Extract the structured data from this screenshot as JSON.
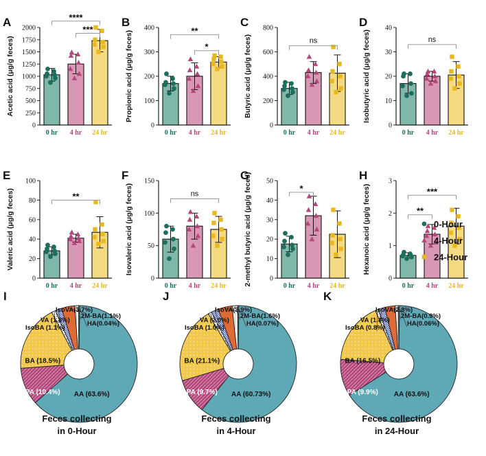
{
  "colors": {
    "g0": "#1e6e5e",
    "g4": "#b5467c",
    "g24": "#e8b820",
    "bar0": "#7fb8ab",
    "bar4": "#d997b6",
    "bar24": "#f6da82",
    "axis": "#222222",
    "sig": "#999999"
  },
  "legend": {
    "entries": [
      {
        "label": "0-Hour",
        "color": "#1e6e5e",
        "marker": "circle"
      },
      {
        "label": "4-Hour",
        "color": "#b5467c",
        "marker": "triangle"
      },
      {
        "label": "24-Hour",
        "color": "#e8b820",
        "marker": "square"
      }
    ]
  },
  "chart_data": [
    {
      "panel": "A",
      "type": "bar",
      "ylabel": "Acetic acid (μg/g feces)",
      "ylim": [
        0,
        2000
      ],
      "yticks": [
        "0",
        "250",
        "500",
        "750",
        "1000",
        "1250",
        "1500",
        "1750",
        "2000"
      ],
      "categories": [
        "0 hr",
        "4 hr",
        "24 hr"
      ],
      "means": [
        1030,
        1250,
        1730
      ],
      "sd": [
        130,
        200,
        230
      ],
      "points": [
        [
          870,
          960,
          1000,
          1030,
          1050,
          1100,
          1150
        ],
        [
          960,
          1050,
          1150,
          1280,
          1420,
          1450,
          1490
        ],
        [
          1500,
          1600,
          1650,
          1700,
          1750,
          1930,
          2000
        ]
      ],
      "sig": [
        {
          "from": 0,
          "to": 2,
          "label": "****",
          "y": 2130
        },
        {
          "from": 1,
          "to": 2,
          "label": "***",
          "y": 1880
        }
      ]
    },
    {
      "panel": "B",
      "type": "bar",
      "ylabel": "Propionic acid (μg/g feces)",
      "ylim": [
        0,
        400
      ],
      "yticks": [
        "0",
        "100",
        "200",
        "300",
        "400"
      ],
      "categories": [
        "0 hr",
        "4 hr",
        "24 hr"
      ],
      "means": [
        170,
        200,
        258
      ],
      "sd": [
        30,
        55,
        22
      ],
      "points": [
        [
          130,
          150,
          165,
          170,
          175,
          190,
          210
        ],
        [
          140,
          160,
          190,
          210,
          225,
          240,
          270
        ],
        [
          230,
          240,
          250,
          260,
          270,
          280,
          285
        ]
      ],
      "sig": [
        {
          "from": 0,
          "to": 2,
          "label": "**",
          "y": 370
        },
        {
          "from": 1,
          "to": 2,
          "label": "*",
          "y": 305
        }
      ]
    },
    {
      "panel": "C",
      "type": "bar",
      "ylabel": "Butyric acid (μg/g feces)",
      "ylim": [
        0,
        800
      ],
      "yticks": [
        "0",
        "200",
        "400",
        "600",
        "800"
      ],
      "categories": [
        "0 hr",
        "4 hr",
        "24 hr"
      ],
      "means": [
        300,
        430,
        425
      ],
      "sd": [
        50,
        90,
        150
      ],
      "points": [
        [
          240,
          270,
          290,
          300,
          320,
          340,
          350
        ],
        [
          330,
          360,
          400,
          430,
          450,
          500,
          560
        ],
        [
          270,
          300,
          360,
          400,
          440,
          500,
          640
        ]
      ],
      "sig": [
        {
          "from": 0,
          "to": 2,
          "label": "ns",
          "y": 650
        }
      ]
    },
    {
      "panel": "D",
      "type": "bar",
      "ylabel": "Isobutyric acid (μg/g feces)",
      "ylim": [
        0,
        40
      ],
      "yticks": [
        "0",
        "10",
        "20",
        "30",
        "40"
      ],
      "categories": [
        "0 hr",
        "4 hr",
        "24 hr"
      ],
      "means": [
        17,
        20,
        20.5
      ],
      "sd": [
        4,
        2,
        5.5
      ],
      "points": [
        [
          12,
          13,
          16,
          17,
          20,
          21,
          21
        ],
        [
          17,
          18,
          19,
          20,
          21,
          22,
          22
        ],
        [
          15,
          17,
          19,
          20,
          22,
          24,
          28
        ]
      ],
      "sig": [
        {
          "from": 0,
          "to": 2,
          "label": "ns",
          "y": 33
        }
      ]
    },
    {
      "panel": "E",
      "type": "bar",
      "ylabel": "Valeric acid (μg/g feces)",
      "ylim": [
        0,
        100
      ],
      "yticks": [
        "0",
        "20",
        "40",
        "60",
        "80",
        "100"
      ],
      "categories": [
        "0 hr",
        "4 hr",
        "24 hr"
      ],
      "means": [
        28,
        41,
        47
      ],
      "sd": [
        4,
        4,
        16
      ],
      "points": [
        [
          22,
          25,
          27,
          28,
          30,
          32,
          34
        ],
        [
          36,
          38,
          40,
          41,
          43,
          45,
          47
        ],
        [
          35,
          38,
          42,
          45,
          50,
          55,
          78
        ]
      ],
      "sig": [
        {
          "from": 0,
          "to": 2,
          "label": "**",
          "y": 80
        }
      ]
    },
    {
      "panel": "F",
      "type": "bar",
      "ylabel": "Isovaleric acid (μg/g feces)",
      "ylim": [
        0,
        150
      ],
      "yticks": [
        "0",
        "50",
        "100",
        "150"
      ],
      "categories": [
        "0 hr",
        "4 hr",
        "24 hr"
      ],
      "means": [
        60,
        80,
        75
      ],
      "sd": [
        20,
        20,
        20
      ],
      "points": [
        [
          30,
          45,
          55,
          60,
          70,
          75,
          80
        ],
        [
          50,
          65,
          75,
          80,
          90,
          95,
          102
        ],
        [
          50,
          60,
          65,
          75,
          85,
          90,
          100
        ]
      ],
      "sig": [
        {
          "from": 0,
          "to": 2,
          "label": "ns",
          "y": 122
        }
      ]
    },
    {
      "panel": "G",
      "type": "bar",
      "ylabel": "2-methyl butyric acid (μg/g feces)",
      "ylim": [
        0,
        50
      ],
      "yticks": [
        "0",
        "10",
        "20",
        "30",
        "40",
        "50"
      ],
      "categories": [
        "0 hr",
        "4 hr",
        "24 hr"
      ],
      "means": [
        17.5,
        32,
        22.5
      ],
      "sd": [
        4,
        10,
        12
      ],
      "points": [
        [
          12,
          15,
          16,
          17,
          19,
          21,
          23
        ],
        [
          20,
          25,
          28,
          32,
          35,
          38,
          42
        ],
        [
          12,
          15,
          18,
          20,
          22,
          28,
          35
        ]
      ],
      "sig": [
        {
          "from": 0,
          "to": 1,
          "label": "*",
          "y": 44
        }
      ]
    },
    {
      "panel": "H",
      "type": "bar",
      "ylabel": "Hexanoic acid (μg/g feces)",
      "ylim": [
        0,
        3
      ],
      "yticks": [
        "0",
        "1",
        "2",
        "3"
      ],
      "categories": [
        "0 hr",
        "4 hr",
        "24 hr"
      ],
      "means": [
        0.7,
        1.35,
        1.6
      ],
      "sd": [
        0.08,
        0.3,
        0.55
      ],
      "points": [
        [
          0.6,
          0.65,
          0.68,
          0.7,
          0.72,
          0.75,
          0.8
        ],
        [
          1.0,
          1.1,
          1.3,
          1.35,
          1.45,
          1.55,
          1.6
        ],
        [
          1.0,
          1.2,
          1.4,
          1.55,
          1.7,
          1.9,
          2.1
        ]
      ],
      "sig": [
        {
          "from": 0,
          "to": 1,
          "label": "**",
          "y": 1.95
        },
        {
          "from": 0,
          "to": 2,
          "label": "***",
          "y": 2.55
        }
      ]
    },
    {
      "panel": "I",
      "type": "pie",
      "caption": [
        "Feces collecting",
        "in 0-Hour"
      ],
      "slices": [
        {
          "key": "AA",
          "value": 63.6,
          "inside": "AA (63.6%)"
        },
        {
          "key": "PA",
          "value": 10.4,
          "inside": "PA (10.4%)"
        },
        {
          "key": "BA",
          "value": 18.5,
          "inside": "BA (18.5%)"
        },
        {
          "key": "IsoBA",
          "value": 1.1,
          "outside": "IsoBA (1.1%)"
        },
        {
          "key": "VA",
          "value": 1.8,
          "outside": "VA (1.8%)"
        },
        {
          "key": "IsoVA",
          "value": 3.7,
          "outside": "IsoVA(3.7%)"
        },
        {
          "key": "2M-BA",
          "value": 1.1,
          "outside": "2M-BA(1.1%)"
        },
        {
          "key": "HA",
          "value": 0.04,
          "outside": "HA(0.04%)"
        }
      ]
    },
    {
      "panel": "J",
      "type": "pie",
      "caption": [
        "Feces collecting",
        "in 4-Hour"
      ],
      "slices": [
        {
          "key": "AA",
          "value": 60.73,
          "inside": "AA (60.73%)"
        },
        {
          "key": "PA",
          "value": 9.7,
          "inside": "PA (9.7%)"
        },
        {
          "key": "BA",
          "value": 21.1,
          "inside": "BA (21.1%)"
        },
        {
          "key": "IsoBA",
          "value": 1.0,
          "outside": "IsoBA (1.0%)"
        },
        {
          "key": "VA",
          "value": 2.0,
          "outside": "VA (2.0%)"
        },
        {
          "key": "IsoVA",
          "value": 3.9,
          "outside": "IsoVA(3.9%)"
        },
        {
          "key": "2M-BA",
          "value": 1.6,
          "outside": "2M-BA(1.6%)"
        },
        {
          "key": "HA",
          "value": 0.07,
          "outside": "HA(0.07%)"
        }
      ]
    },
    {
      "panel": "K",
      "type": "pie",
      "caption": [
        "Feces collecting",
        "in 24-Hour"
      ],
      "slices": [
        {
          "key": "AA",
          "value": 63.6,
          "inside": "AA (63.6%)"
        },
        {
          "key": "PA",
          "value": 9.9,
          "inside": "PA (9.9%)"
        },
        {
          "key": "BA",
          "value": 16.5,
          "inside": "BA (16.5%)"
        },
        {
          "key": "IsoBA",
          "value": 0.8,
          "outside": "IsoBA (0.8%)"
        },
        {
          "key": "VA",
          "value": 1.8,
          "outside": "VA (1.8%)"
        },
        {
          "key": "IsoVA",
          "value": 2.8,
          "outside": "IsoVA(2.8%)"
        },
        {
          "key": "2M-BA",
          "value": 0.9,
          "outside": "2M-BA(0.9%)"
        },
        {
          "key": "HA",
          "value": 0.06,
          "outside": "HA(0.06%)"
        }
      ]
    }
  ]
}
